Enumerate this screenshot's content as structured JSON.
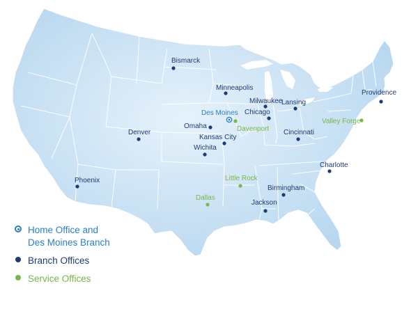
{
  "map": {
    "cities": [
      {
        "name": "Bismarck",
        "type": "branch"
      },
      {
        "name": "Minneapolis",
        "type": "branch"
      },
      {
        "name": "Milwaukee",
        "type": "branch"
      },
      {
        "name": "Chicago",
        "type": "branch"
      },
      {
        "name": "Lansing",
        "type": "branch"
      },
      {
        "name": "Providence",
        "type": "branch"
      },
      {
        "name": "Des Moines",
        "type": "home"
      },
      {
        "name": "Davenport",
        "type": "service"
      },
      {
        "name": "Valley Forge",
        "type": "service"
      },
      {
        "name": "Omaha",
        "type": "branch"
      },
      {
        "name": "Denver",
        "type": "branch"
      },
      {
        "name": "Kansas City",
        "type": "branch"
      },
      {
        "name": "Cincinnati",
        "type": "branch"
      },
      {
        "name": "Wichita",
        "type": "branch"
      },
      {
        "name": "Charlotte",
        "type": "branch"
      },
      {
        "name": "Phoenix",
        "type": "branch"
      },
      {
        "name": "Little Rock",
        "type": "service"
      },
      {
        "name": "Birmingham",
        "type": "branch"
      },
      {
        "name": "Dallas",
        "type": "service"
      },
      {
        "name": "Jackson",
        "type": "branch"
      }
    ]
  },
  "legend": {
    "home_line1": "Home Office and",
    "home_line2": "Des Moines Branch",
    "branch": "Branch Offices",
    "service": "Service Offices"
  },
  "colors": {
    "land": "#c8e1f4",
    "border": "#ffffff",
    "branch": "#1f3b73",
    "service": "#7ab648",
    "home": "#2a80c7"
  }
}
